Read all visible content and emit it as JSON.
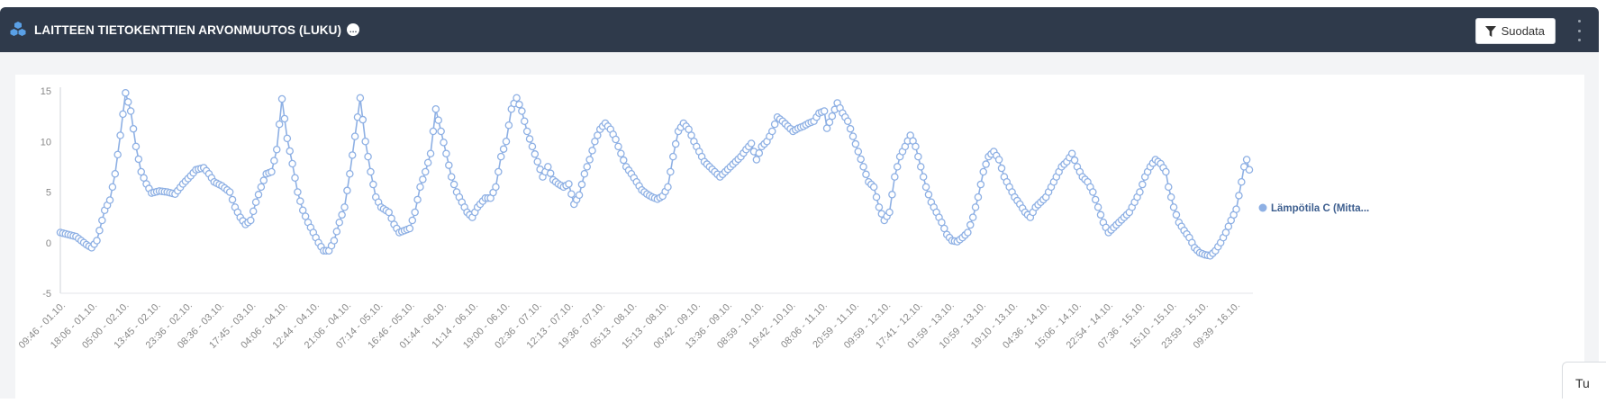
{
  "header": {
    "title": "LAITTEEN TIETOKENTTIEN ARVONMUUTOS (LUKU)",
    "info_badge": "…",
    "filter_label": "Suodata",
    "background": "#2f3a4b"
  },
  "corner_tab": {
    "label": "Tu"
  },
  "icons": {
    "title_icon": "cubes-icon",
    "filter_icon": "funnel-icon",
    "menu_icon": "kebab-icon"
  },
  "chart_data": {
    "type": "line",
    "title": "",
    "xlabel": "",
    "ylabel": "",
    "ylim": [
      -5,
      15
    ],
    "yticks": [
      "15",
      "10",
      "5",
      "0",
      "-5"
    ],
    "grid": false,
    "legend_position": "right",
    "series_color": "#8eb0e4",
    "tick_labels": [
      "09:46 - 01.10.",
      "18:06 - 01.10.",
      "05:00 - 02.10.",
      "13:45 - 02.10.",
      "23:36 - 02.10.",
      "08:36 - 03.10.",
      "17:45 - 03.10.",
      "04:06 - 04.10.",
      "12:44 - 04.10.",
      "21:06 - 04.10.",
      "07:14 - 05.10.",
      "16:46 - 05.10.",
      "01:44 - 06.10.",
      "11:14 - 06.10.",
      "19:00 - 06.10.",
      "02:36 - 07.10.",
      "12:13 - 07.10.",
      "19:36 - 07.10.",
      "05:13 - 08.10.",
      "15:13 - 08.10.",
      "00:42 - 09.10.",
      "13:36 - 09.10.",
      "08:59 - 10.10.",
      "19:42 - 10.10.",
      "08:06 - 11.10.",
      "20:59 - 11.10.",
      "09:59 - 12.10.",
      "17:41 - 12.10.",
      "01:59 - 13.10.",
      "10:59 - 13.10.",
      "19:10 - 13.10.",
      "04:36 - 14.10.",
      "15:06 - 14.10.",
      "22:54 - 14.10.",
      "07:36 - 15.10.",
      "15:10 - 15.10.",
      "23:59 - 15.10.",
      "09:39 - 16.10."
    ],
    "series": [
      {
        "name": "Lämpötila C (Mitta...",
        "anchors": [
          [
            0,
            1.0
          ],
          [
            3,
            0.8
          ],
          [
            6,
            0.6
          ],
          [
            10,
            -0.2
          ],
          [
            12,
            -0.5
          ],
          [
            14,
            0.2
          ],
          [
            17,
            3.2
          ],
          [
            19,
            4.2
          ],
          [
            21,
            6.8
          ],
          [
            23,
            10.6
          ],
          [
            25,
            14.8
          ],
          [
            27,
            13.0
          ],
          [
            29,
            9.5
          ],
          [
            31,
            7.0
          ],
          [
            33,
            5.8
          ],
          [
            35,
            4.9
          ],
          [
            38,
            5.1
          ],
          [
            41,
            5.0
          ],
          [
            44,
            4.8
          ],
          [
            47,
            5.8
          ],
          [
            50,
            6.6
          ],
          [
            52,
            7.2
          ],
          [
            55,
            7.4
          ],
          [
            57,
            6.8
          ],
          [
            59,
            6.0
          ],
          [
            62,
            5.6
          ],
          [
            65,
            5.0
          ],
          [
            67,
            3.5
          ],
          [
            69,
            2.5
          ],
          [
            71,
            1.8
          ],
          [
            73,
            2.2
          ],
          [
            75,
            4.0
          ],
          [
            77,
            5.5
          ],
          [
            79,
            6.8
          ],
          [
            81,
            7.0
          ],
          [
            83,
            9.2
          ],
          [
            85,
            14.2
          ],
          [
            87,
            10.3
          ],
          [
            89,
            7.8
          ],
          [
            91,
            5.0
          ],
          [
            93,
            3.2
          ],
          [
            95,
            2.0
          ],
          [
            97,
            1.0
          ],
          [
            99,
            0.0
          ],
          [
            101,
            -0.8
          ],
          [
            103,
            -0.8
          ],
          [
            105,
            0.2
          ],
          [
            107,
            2.0
          ],
          [
            109,
            3.5
          ],
          [
            111,
            6.8
          ],
          [
            113,
            10.5
          ],
          [
            115,
            14.3
          ],
          [
            117,
            10.0
          ],
          [
            119,
            7.0
          ],
          [
            121,
            4.5
          ],
          [
            123,
            3.5
          ],
          [
            126,
            3.0
          ],
          [
            128,
            1.8
          ],
          [
            130,
            1.0
          ],
          [
            132,
            1.2
          ],
          [
            134,
            1.4
          ],
          [
            136,
            3.0
          ],
          [
            138,
            5.5
          ],
          [
            140,
            7.0
          ],
          [
            142,
            8.8
          ],
          [
            144,
            13.2
          ],
          [
            146,
            11.0
          ],
          [
            148,
            8.8
          ],
          [
            150,
            6.5
          ],
          [
            152,
            5.0
          ],
          [
            154,
            4.0
          ],
          [
            156,
            3.0
          ],
          [
            158,
            2.5
          ],
          [
            160,
            3.5
          ],
          [
            163,
            4.4
          ],
          [
            165,
            4.4
          ],
          [
            167,
            5.5
          ],
          [
            169,
            8.5
          ],
          [
            171,
            10.0
          ],
          [
            173,
            13.2
          ],
          [
            175,
            14.3
          ],
          [
            177,
            13.0
          ],
          [
            179,
            11.0
          ],
          [
            181,
            9.5
          ],
          [
            183,
            8.0
          ],
          [
            185,
            6.5
          ],
          [
            187,
            7.5
          ],
          [
            189,
            6.2
          ],
          [
            191,
            5.8
          ],
          [
            193,
            5.5
          ],
          [
            195,
            5.8
          ],
          [
            197,
            3.8
          ],
          [
            199,
            4.7
          ],
          [
            201,
            6.8
          ],
          [
            203,
            8.2
          ],
          [
            205,
            10.0
          ],
          [
            207,
            11.2
          ],
          [
            209,
            11.8
          ],
          [
            211,
            11.2
          ],
          [
            213,
            10.2
          ],
          [
            215,
            8.8
          ],
          [
            217,
            7.5
          ],
          [
            219,
            6.8
          ],
          [
            221,
            6.0
          ],
          [
            223,
            5.2
          ],
          [
            225,
            4.8
          ],
          [
            227,
            4.5
          ],
          [
            229,
            4.3
          ],
          [
            231,
            4.6
          ],
          [
            233,
            5.5
          ],
          [
            235,
            8.5
          ],
          [
            237,
            11.0
          ],
          [
            239,
            11.8
          ],
          [
            241,
            11.2
          ],
          [
            243,
            10.0
          ],
          [
            245,
            9.0
          ],
          [
            247,
            8.0
          ],
          [
            249,
            7.5
          ],
          [
            251,
            7.0
          ],
          [
            253,
            6.5
          ],
          [
            255,
            7.0
          ],
          [
            257,
            7.5
          ],
          [
            259,
            8.0
          ],
          [
            261,
            8.5
          ],
          [
            263,
            9.2
          ],
          [
            265,
            9.8
          ],
          [
            267,
            8.2
          ],
          [
            269,
            9.5
          ],
          [
            271,
            10.0
          ],
          [
            273,
            11.0
          ],
          [
            275,
            12.4
          ],
          [
            277,
            12.0
          ],
          [
            279,
            11.5
          ],
          [
            281,
            11.0
          ],
          [
            283,
            11.3
          ],
          [
            285,
            11.5
          ],
          [
            287,
            11.8
          ],
          [
            289,
            12.0
          ],
          [
            291,
            12.8
          ],
          [
            293,
            13.0
          ],
          [
            294,
            11.3
          ],
          [
            296,
            12.5
          ],
          [
            298,
            13.8
          ],
          [
            300,
            12.8
          ],
          [
            302,
            12.0
          ],
          [
            304,
            10.5
          ],
          [
            306,
            9.0
          ],
          [
            308,
            7.5
          ],
          [
            310,
            6.0
          ],
          [
            312,
            5.5
          ],
          [
            314,
            3.5
          ],
          [
            316,
            2.2
          ],
          [
            318,
            3.0
          ],
          [
            320,
            6.5
          ],
          [
            322,
            8.5
          ],
          [
            324,
            9.5
          ],
          [
            326,
            10.6
          ],
          [
            328,
            9.5
          ],
          [
            330,
            7.5
          ],
          [
            332,
            5.5
          ],
          [
            334,
            4.0
          ],
          [
            336,
            3.0
          ],
          [
            338,
            2.0
          ],
          [
            340,
            0.8
          ],
          [
            342,
            0.2
          ],
          [
            344,
            0.1
          ],
          [
            346,
            0.5
          ],
          [
            348,
            1.0
          ],
          [
            350,
            2.5
          ],
          [
            352,
            4.5
          ],
          [
            354,
            7.0
          ],
          [
            356,
            8.5
          ],
          [
            358,
            9.0
          ],
          [
            360,
            8.2
          ],
          [
            362,
            6.5
          ],
          [
            364,
            5.5
          ],
          [
            366,
            4.5
          ],
          [
            368,
            3.8
          ],
          [
            370,
            3.0
          ],
          [
            372,
            2.5
          ],
          [
            374,
            3.5
          ],
          [
            376,
            4.0
          ],
          [
            378,
            4.5
          ],
          [
            380,
            5.5
          ],
          [
            382,
            6.5
          ],
          [
            384,
            7.5
          ],
          [
            386,
            8.0
          ],
          [
            388,
            8.8
          ],
          [
            390,
            7.5
          ],
          [
            392,
            6.5
          ],
          [
            394,
            6.0
          ],
          [
            396,
            5.0
          ],
          [
            398,
            3.5
          ],
          [
            400,
            2.0
          ],
          [
            402,
            1.0
          ],
          [
            404,
            1.5
          ],
          [
            406,
            2.0
          ],
          [
            408,
            2.5
          ],
          [
            410,
            3.0
          ],
          [
            412,
            4.0
          ],
          [
            414,
            5.0
          ],
          [
            416,
            6.5
          ],
          [
            418,
            7.5
          ],
          [
            420,
            8.2
          ],
          [
            422,
            7.8
          ],
          [
            424,
            7.0
          ],
          [
            425,
            5.5
          ],
          [
            427,
            3.5
          ],
          [
            429,
            2.0
          ],
          [
            431,
            1.2
          ],
          [
            433,
            0.5
          ],
          [
            435,
            -0.5
          ],
          [
            437,
            -1.0
          ],
          [
            439,
            -1.2
          ],
          [
            441,
            -1.3
          ],
          [
            443,
            -0.8
          ],
          [
            445,
            0.0
          ],
          [
            447,
            1.0
          ],
          [
            449,
            2.2
          ],
          [
            451,
            3.3
          ],
          [
            453,
            6.0
          ],
          [
            454,
            7.5
          ],
          [
            455,
            8.2
          ],
          [
            456,
            7.2
          ]
        ]
      }
    ]
  }
}
